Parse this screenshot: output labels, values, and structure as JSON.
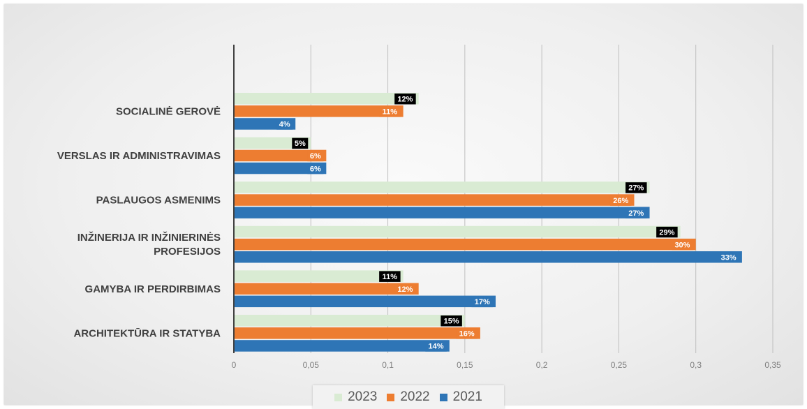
{
  "chart_data": {
    "type": "bar",
    "orientation": "horizontal",
    "categories": [
      "SOCIALINĖ GEROVĖ",
      "VERSLAS IR ADMINISTRAVIMAS",
      "PASLAUGOS ASMENIMS",
      "INŽINERIJA IR INŽINIERINĖS PROFESIJOS",
      "GAMYBA IR PERDIRBIMAS",
      "ARCHITEKTŪRA IR STATYBA"
    ],
    "series": [
      {
        "name": "2023",
        "color": "#d9ebd3",
        "label_bg": "#000000",
        "values": [
          0.12,
          0.05,
          0.27,
          0.29,
          0.11,
          0.15
        ],
        "labels": [
          "12%",
          "5%",
          "27%",
          "29%",
          "11%",
          "15%"
        ]
      },
      {
        "name": "2022",
        "color": "#ed7d31",
        "label_bg": "#ed7d31",
        "values": [
          0.11,
          0.06,
          0.26,
          0.3,
          0.12,
          0.16
        ],
        "labels": [
          "11%",
          "6%",
          "26%",
          "30%",
          "12%",
          "16%"
        ]
      },
      {
        "name": "2021",
        "color": "#2e75b6",
        "label_bg": "#2e75b6",
        "values": [
          0.04,
          0.06,
          0.27,
          0.33,
          0.17,
          0.14
        ],
        "labels": [
          "4%",
          "6%",
          "27%",
          "33%",
          "17%",
          "14%"
        ]
      }
    ],
    "xlim": [
      0,
      0.35
    ],
    "xticks": [
      "0",
      "0,05",
      "0,1",
      "0,15",
      "0,2",
      "0,25",
      "0,3",
      "0,35"
    ],
    "grid": true,
    "legend_position": "bottom"
  }
}
